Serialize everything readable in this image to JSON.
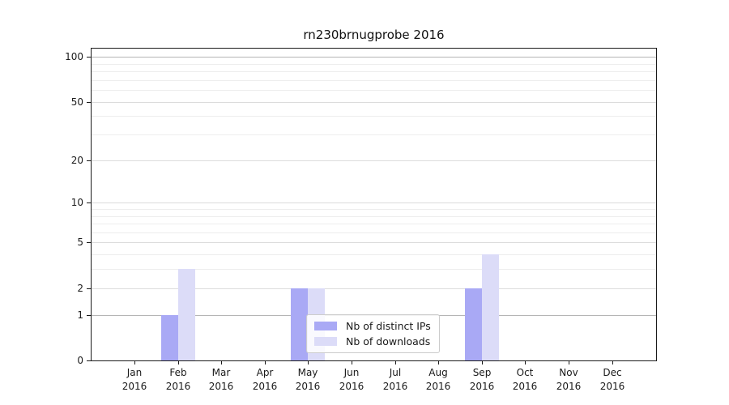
{
  "chart_data": {
    "type": "bar",
    "title": "rn230brnugprobe 2016",
    "categories": [
      "Jan",
      "Feb",
      "Mar",
      "Apr",
      "May",
      "Jun",
      "Jul",
      "Aug",
      "Sep",
      "Oct",
      "Nov",
      "Dec"
    ],
    "x_tick_year_line": "2016",
    "series": [
      {
        "name": "Nb of distinct IPs",
        "color": "#a9a9f5",
        "values": [
          0,
          1,
          0,
          0,
          2,
          0,
          0,
          0,
          2,
          0,
          0,
          0
        ]
      },
      {
        "name": "Nb of downloads",
        "color": "#dcdcf8",
        "values": [
          0,
          3,
          0,
          0,
          2,
          0,
          0,
          0,
          4,
          0,
          0,
          0
        ]
      }
    ],
    "xlabel": "",
    "ylabel": "",
    "y_scale": "log10(1+x)",
    "y_major_ticks": [
      0,
      1,
      2,
      5,
      10,
      20,
      50,
      100
    ],
    "y_minor_gridlines": [
      3,
      4,
      6,
      7,
      8,
      9,
      30,
      40,
      60,
      70,
      80,
      90
    ],
    "ylim": [
      0,
      115
    ],
    "grid": "horizontal",
    "legend_position": "inside-bottom-center"
  }
}
